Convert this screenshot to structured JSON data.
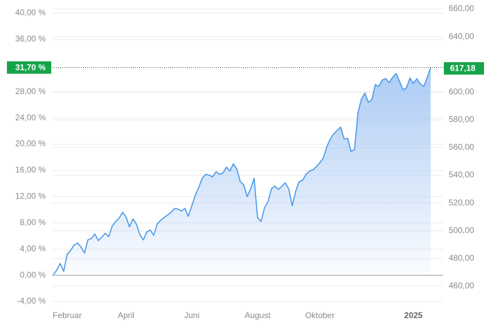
{
  "chart_data": {
    "type": "line",
    "categories": [
      null,
      null,
      null,
      null,
      "Februar",
      null,
      null,
      null,
      null,
      null,
      null,
      null,
      null,
      null,
      null,
      null,
      null,
      null,
      null,
      null,
      null,
      "April",
      null,
      null,
      null,
      null,
      null,
      null,
      null,
      null,
      null,
      null,
      null,
      null,
      null,
      null,
      null,
      null,
      null,
      null,
      "Juni",
      null,
      null,
      null,
      null,
      null,
      null,
      null,
      null,
      null,
      null,
      null,
      null,
      null,
      null,
      null,
      null,
      null,
      null,
      "August",
      null,
      null,
      null,
      null,
      null,
      null,
      null,
      null,
      null,
      null,
      null,
      null,
      null,
      null,
      null,
      null,
      null,
      "Oktober",
      null,
      null,
      null,
      null,
      null,
      null,
      null,
      null,
      null,
      null,
      null,
      null,
      null,
      null,
      null,
      null,
      null,
      null,
      null,
      null,
      null,
      null,
      null,
      null,
      null,
      null,
      "2025",
      null,
      null,
      null,
      null,
      null
    ],
    "series": [
      {
        "color": "#4a9be8",
        "values": [
          0.1,
          0.8,
          1.8,
          0.6,
          3.2,
          3.8,
          4.6,
          4.9,
          4.3,
          3.4,
          5.4,
          5.6,
          6.3,
          5.3,
          5.8,
          6.4,
          5.9,
          7.5,
          8.2,
          8.7,
          9.6,
          8.9,
          7.4,
          8.6,
          7.8,
          6.2,
          5.4,
          6.6,
          6.9,
          6.1,
          7.8,
          8.4,
          8.8,
          9.2,
          9.6,
          10.2,
          10.1,
          9.8,
          10.2,
          9.0,
          10.6,
          12.2,
          13.4,
          14.8,
          15.4,
          15.3,
          15.0,
          15.8,
          15.4,
          15.6,
          16.5,
          15.9,
          17.0,
          16.2,
          14.3,
          13.8,
          12.0,
          13.2,
          14.8,
          8.8,
          8.2,
          10.3,
          11.2,
          13.2,
          13.6,
          13.1,
          13.6,
          14.1,
          13.2,
          10.6,
          12.8,
          14.3,
          14.5,
          15.4,
          15.9,
          16.1,
          16.6,
          17.2,
          17.9,
          19.6,
          20.8,
          21.6,
          22.1,
          22.6,
          20.8,
          20.9,
          18.9,
          19.2,
          24.8,
          26.9,
          27.8,
          26.4,
          26.8,
          29.1,
          28.8,
          29.8,
          30.0,
          29.4,
          30.2,
          30.8,
          29.6,
          28.3,
          28.6,
          30.1,
          29.3,
          30.0,
          29.2,
          28.8,
          30.2,
          31.7
        ]
      }
    ],
    "area_color": "#a7c8f4",
    "ylim": [
      -4,
      40.63
    ],
    "yticks": [
      {
        "value": -4,
        "label": "-4,00 %"
      },
      {
        "value": 0,
        "label": "0,00 %"
      },
      {
        "value": 4,
        "label": "4,00 %"
      },
      {
        "value": 8,
        "label": "8,00 %"
      },
      {
        "value": 12,
        "label": "12,00 %"
      },
      {
        "value": 16,
        "label": "16,00 %"
      },
      {
        "value": 20,
        "label": "20,00 %"
      },
      {
        "value": 24,
        "label": "24,00 %"
      },
      {
        "value": 28,
        "label": "28,00 %"
      },
      {
        "value": 36,
        "label": "36,00 %"
      },
      {
        "value": 40,
        "label": "40,00 %"
      }
    ],
    "y2lim": [
      449,
      660
    ],
    "y2ticks": [
      {
        "value": 460,
        "label": "460,00"
      },
      {
        "value": 480,
        "label": "480,00"
      },
      {
        "value": 500,
        "label": "500,00"
      },
      {
        "value": 520,
        "label": "520,00"
      },
      {
        "value": 540,
        "label": "540,00"
      },
      {
        "value": 560,
        "label": "560,00"
      },
      {
        "value": 580,
        "label": "580,00"
      },
      {
        "value": 600,
        "label": "600,00"
      },
      {
        "value": 640,
        "label": "640,00"
      },
      {
        "value": 660,
        "label": "660,00"
      }
    ],
    "grid": true,
    "current": {
      "value": 31.7,
      "label": "31,70 %"
    },
    "current_y2": {
      "value": 617.18,
      "label": "617,18"
    },
    "marker_color": "#17a34a"
  }
}
